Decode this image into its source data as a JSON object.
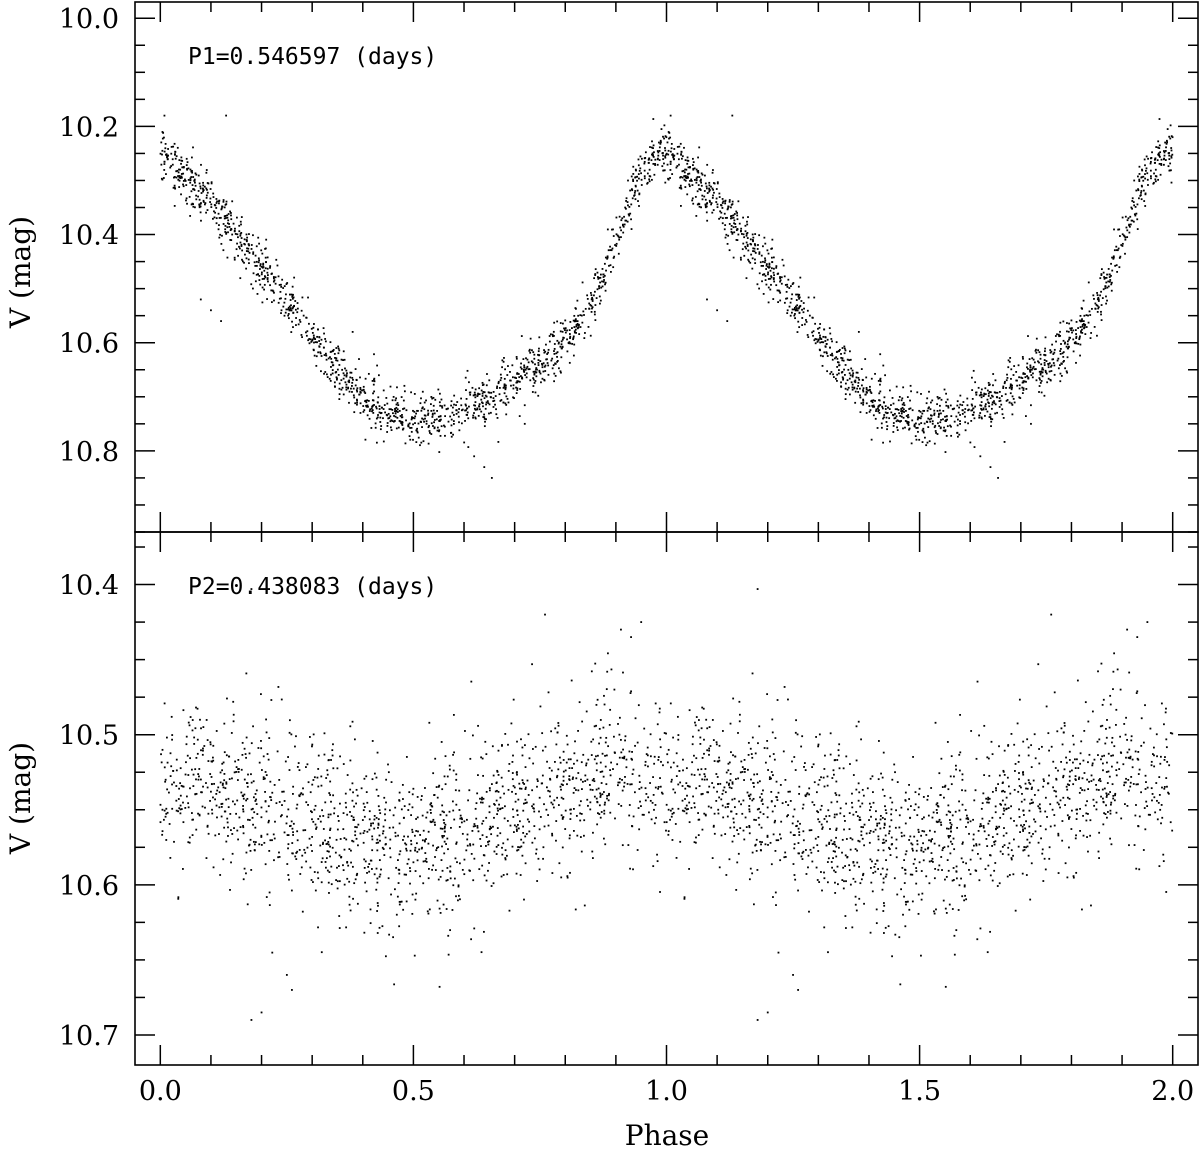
{
  "chart_data": [
    {
      "type": "scatter",
      "annotation": "P1=0.546597 (days)",
      "xlabel": "Phase",
      "ylabel": "V (mag)",
      "xlim": [
        -0.05,
        2.05
      ],
      "ylim": [
        10.95,
        9.97
      ],
      "y_inverted": true,
      "x_ticks": [
        "0.0",
        "0.5",
        "1.0",
        "1.5",
        "2.0"
      ],
      "y_ticks": [
        "10.0",
        "10.2",
        "10.4",
        "10.6",
        "10.8"
      ],
      "x_period": 1.0,
      "mean_curve": {
        "x": [
          0.0,
          0.05,
          0.1,
          0.15,
          0.2,
          0.25,
          0.3,
          0.35,
          0.4,
          0.45,
          0.5,
          0.55,
          0.6,
          0.65,
          0.7,
          0.75,
          0.8,
          0.85,
          0.88,
          0.91,
          0.94,
          0.97,
          1.0
        ],
        "y": [
          10.25,
          10.29,
          10.34,
          10.4,
          10.46,
          10.52,
          10.59,
          10.65,
          10.7,
          10.73,
          10.74,
          10.74,
          10.72,
          10.7,
          10.67,
          10.64,
          10.6,
          10.53,
          10.47,
          10.39,
          10.3,
          10.26,
          10.25
        ],
        "scatter": 0.025
      },
      "outliers": [
        [
          0.08,
          10.52
        ],
        [
          0.1,
          10.54
        ],
        [
          0.12,
          10.56
        ],
        [
          0.13,
          10.18
        ],
        [
          0.38,
          10.58
        ],
        [
          0.62,
          10.81
        ],
        [
          0.64,
          10.83
        ],
        [
          0.655,
          10.85
        ],
        [
          0.72,
          10.75
        ]
      ]
    },
    {
      "type": "scatter",
      "annotation": "P2=0.438083 (days)",
      "xlabel": "Phase",
      "ylabel": "V (mag)",
      "xlim": [
        -0.05,
        2.05
      ],
      "ylim": [
        10.72,
        10.365
      ],
      "y_inverted": true,
      "x_ticks": [
        "0.0",
        "0.5",
        "1.0",
        "1.5",
        "2.0"
      ],
      "y_ticks": [
        "10.4",
        "10.5",
        "10.6",
        "10.7"
      ],
      "x_period": 1.0,
      "mean_curve": {
        "x": [
          0.0,
          0.1,
          0.2,
          0.3,
          0.4,
          0.5,
          0.6,
          0.7,
          0.8,
          0.9,
          1.0
        ],
        "y": [
          10.53,
          10.535,
          10.545,
          10.56,
          10.57,
          10.575,
          10.565,
          10.55,
          10.54,
          10.525,
          10.53
        ],
        "scatter": 0.03
      },
      "outliers": [
        [
          0.18,
          10.69
        ],
        [
          0.2,
          10.685
        ],
        [
          0.25,
          10.66
        ],
        [
          0.26,
          10.67
        ],
        [
          0.76,
          10.42
        ],
        [
          0.91,
          10.43
        ],
        [
          0.93,
          10.435
        ],
        [
          0.95,
          10.425
        ],
        [
          0.18,
          10.403
        ]
      ]
    }
  ],
  "panels": {
    "top_annotation": "P1=0.546597 (days)",
    "bottom_annotation": "P2=0.438083 (days)",
    "y_label": "V (mag)",
    "x_label": "Phase"
  }
}
